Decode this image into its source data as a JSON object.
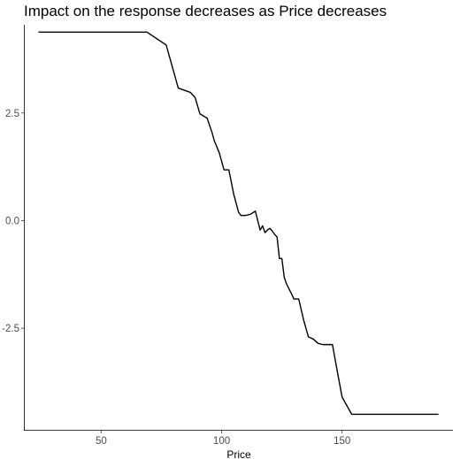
{
  "chart_data": {
    "type": "line",
    "title": "Impact on the response decreases as Price decreases",
    "xlabel": "Price",
    "ylabel": "",
    "xlim": [
      18.3,
      196
    ],
    "ylim": [
      -4.86,
      4.55
    ],
    "x_ticks": [
      50,
      100,
      150
    ],
    "y_ticks": [
      2.5,
      0.0,
      -2.5
    ],
    "x_tick_labels": [
      "50",
      "100",
      "150"
    ],
    "y_tick_labels": [
      "2.5",
      "0.0",
      "-2.5"
    ],
    "grid": false,
    "series": [
      {
        "x": [
          24,
          69,
          77,
          82,
          87,
          89,
          91,
          94,
          96,
          97,
          99,
          101,
          103,
          105,
          107,
          108,
          110,
          112,
          114,
          116,
          117,
          118,
          119,
          120,
          121,
          122,
          123,
          124,
          125,
          126,
          127,
          129,
          130,
          132,
          134,
          136,
          138,
          140,
          142,
          144,
          146,
          148,
          150,
          152,
          154,
          160,
          190
        ],
        "y": [
          4.38,
          4.38,
          4.08,
          3.08,
          2.98,
          2.86,
          2.48,
          2.38,
          2.05,
          1.85,
          1.58,
          1.18,
          1.18,
          0.62,
          0.2,
          0.12,
          0.12,
          0.15,
          0.22,
          -0.22,
          -0.12,
          -0.28,
          -0.22,
          -0.18,
          -0.24,
          -0.32,
          -0.38,
          -0.88,
          -0.88,
          -1.32,
          -1.48,
          -1.7,
          -1.82,
          -1.82,
          -2.3,
          -2.7,
          -2.75,
          -2.85,
          -2.88,
          -2.88,
          -2.88,
          -3.5,
          -4.1,
          -4.3,
          -4.5,
          -4.5,
          -4.5
        ]
      }
    ]
  }
}
